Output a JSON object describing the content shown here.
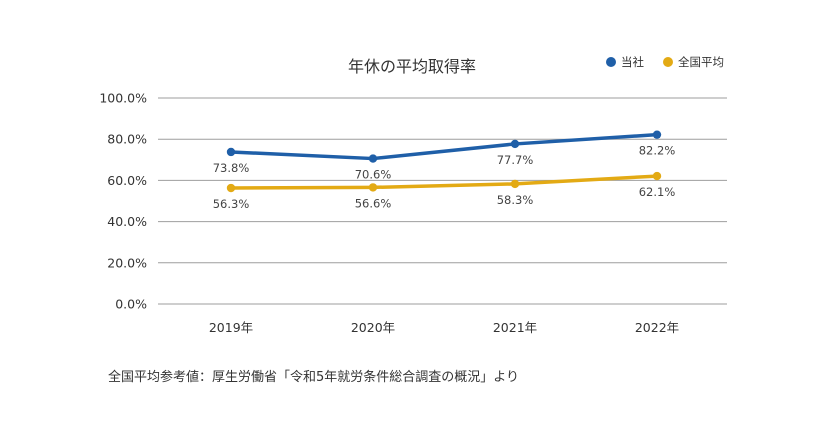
{
  "chart_data": {
    "type": "line",
    "title": "年休の平均取得率",
    "categories": [
      "2019年",
      "2020年",
      "2021年",
      "2022年"
    ],
    "series": [
      {
        "name": "当社",
        "color": "#1f5fa8",
        "values": [
          73.8,
          70.6,
          77.7,
          82.2
        ],
        "data_labels": [
          "73.8%",
          "70.6%",
          "77.7%",
          "82.2%"
        ]
      },
      {
        "name": "全国平均",
        "color": "#e3aa14",
        "values": [
          56.3,
          56.6,
          58.3,
          62.1
        ],
        "data_labels": [
          "56.3%",
          "56.6%",
          "58.3%",
          "62.1%"
        ]
      }
    ],
    "y_ticks": [
      0,
      20,
      40,
      60,
      80,
      100
    ],
    "y_tick_labels": [
      "0.0%",
      "20.0%",
      "40.0%",
      "60.0%",
      "80.0%",
      "100.0%"
    ],
    "ylim": [
      0,
      100
    ],
    "xlabel": "",
    "ylabel": "",
    "grid": true,
    "legend_position": "top-right",
    "gridline_color": "#9e9e9e"
  },
  "source_note": "全国平均参考値：厚生労働省「令和5年就労条件総合調査の概況」より"
}
